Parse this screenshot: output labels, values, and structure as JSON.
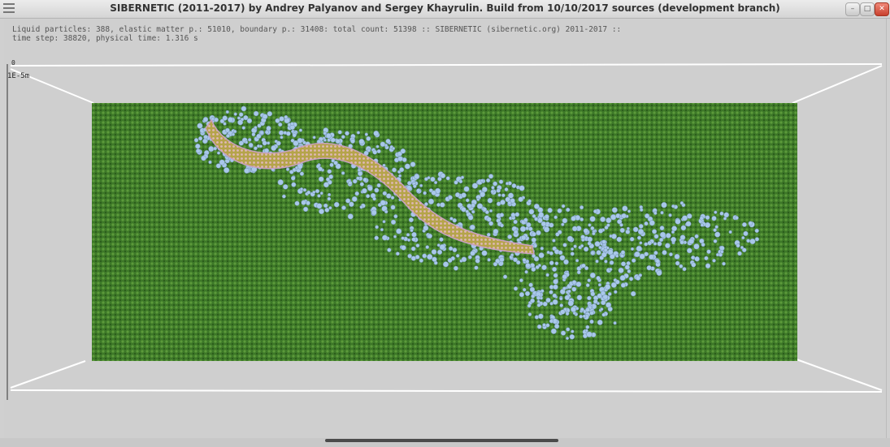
{
  "window": {
    "title": "SIBERNETIC (2011-2017) by Andrey Palyanov and Sergey Khayrulin. Build from 10/10/2017 sources (development branch)",
    "buttons": [
      "minimize",
      "maximize",
      "close"
    ]
  },
  "info": {
    "line1": "Liquid particles: 388, elastic matter p.: 51010, boundary p.: 31408: total count: 51398 :: SIBERNETIC (sibernetic.org) 2011-2017 ::",
    "line2": "time step: 38820, physical time: 1.316 s"
  },
  "scale": {
    "top_label": "0",
    "label": "1E-5m"
  },
  "colors": {
    "liquid": "#3f7a2a",
    "elastic": "#a9c8ea",
    "worm": "#b8a040",
    "box_edges": "#ffffff"
  },
  "icons": {
    "menu": "menu-icon",
    "minimize": "minimize-icon",
    "maximize": "maximize-icon",
    "close": "close-icon"
  }
}
